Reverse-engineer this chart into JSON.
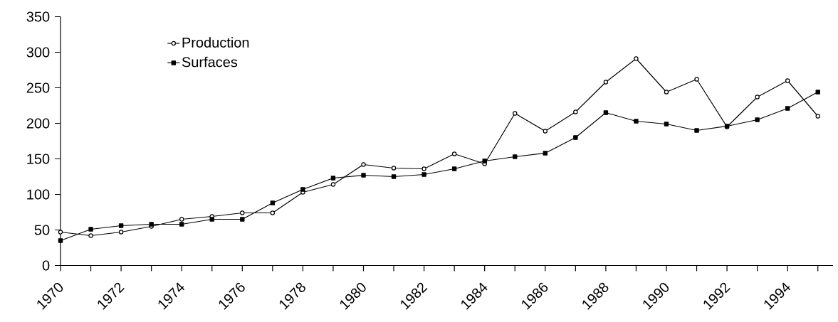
{
  "chart_data": {
    "type": "line",
    "x": [
      1970,
      1971,
      1972,
      1973,
      1974,
      1975,
      1976,
      1977,
      1978,
      1979,
      1980,
      1981,
      1982,
      1983,
      1984,
      1985,
      1986,
      1987,
      1988,
      1989,
      1990,
      1991,
      1992,
      1993,
      1994,
      1995
    ],
    "series": [
      {
        "name": "Production",
        "color": "#000000",
        "marker": "circle",
        "values": [
          47,
          42,
          47,
          55,
          65,
          69,
          74,
          74,
          103,
          114,
          142,
          137,
          136,
          157,
          143,
          214,
          189,
          216,
          258,
          291,
          244,
          262,
          195,
          237,
          260,
          210
        ]
      },
      {
        "name": "Surfaces",
        "color": "#000000",
        "marker": "square",
        "values": [
          35,
          51,
          56,
          58,
          58,
          65,
          65,
          88,
          107,
          123,
          127,
          125,
          128,
          136,
          147,
          153,
          158,
          180,
          215,
          203,
          199,
          190,
          196,
          205,
          221,
          244
        ]
      }
    ],
    "xlim": [
      1970,
      1995.5
    ],
    "xticks": [
      1970,
      {
        "value": 1971,
        "label": null
      },
      1972,
      {
        "value": 1973,
        "label": null
      },
      1974,
      {
        "value": 1975,
        "label": null
      },
      1976,
      {
        "value": 1977,
        "label": null
      },
      1978,
      {
        "value": 1979,
        "label": null
      },
      1980,
      {
        "value": 1981,
        "label": null
      },
      1982,
      {
        "value": 1983,
        "label": null
      },
      1984,
      {
        "value": 1985,
        "label": null
      },
      1986,
      {
        "value": 1987,
        "label": null
      },
      1988,
      {
        "value": 1989,
        "label": null
      },
      1990,
      {
        "value": 1991,
        "label": null
      },
      1992,
      {
        "value": 1993,
        "label": null
      },
      1994,
      {
        "value": 1995,
        "label": null
      }
    ],
    "ylim": [
      0,
      350
    ],
    "yticks": [
      0,
      50,
      100,
      150,
      200,
      250,
      300,
      350
    ],
    "grid": false,
    "legend": "top left",
    "line_style": "solid"
  }
}
